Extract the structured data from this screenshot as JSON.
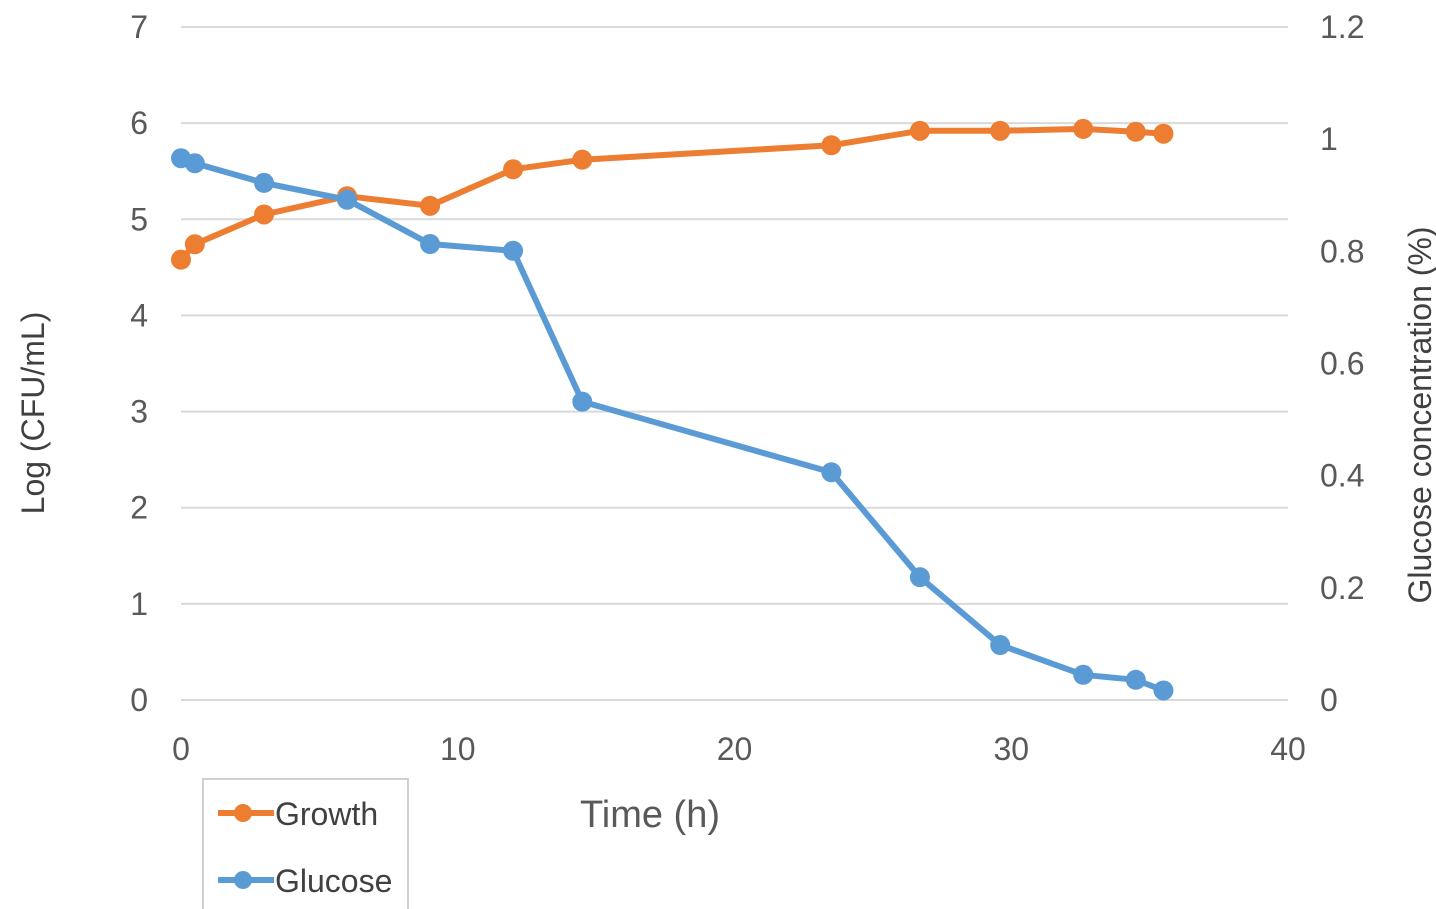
{
  "chart_data": {
    "type": "line",
    "title": "",
    "xlabel": "Time (h)",
    "ylabel_left": "Log (CFU/mL)",
    "ylabel_right": "Glucose concentration (%)",
    "xlim": [
      0,
      40
    ],
    "ylim_left": [
      0,
      7
    ],
    "ylim_right": [
      0,
      1.2
    ],
    "x_ticks": [
      "0",
      "10",
      "20",
      "30",
      "40"
    ],
    "y_ticks_left": [
      "0",
      "1",
      "2",
      "3",
      "4",
      "5",
      "6",
      "7"
    ],
    "y_ticks_right": [
      "0",
      "0.2",
      "0.4",
      "0.6",
      "0.8",
      "1",
      "1.2"
    ],
    "grid": true,
    "legend_position": "bottom-left",
    "series": [
      {
        "name": "Growth",
        "axis": "left",
        "color": "#ED7D31",
        "x": [
          0,
          0.5,
          3,
          6,
          9,
          12,
          14.5,
          23.5,
          26.7,
          29.6,
          32.6,
          34.5,
          35.5
        ],
        "y": [
          4.58,
          4.74,
          5.05,
          5.24,
          5.14,
          5.52,
          5.62,
          5.77,
          5.92,
          5.92,
          5.94,
          5.91,
          5.89
        ]
      },
      {
        "name": "Glucose",
        "axis": "right",
        "color": "#5B9BD5",
        "x": [
          0,
          0.5,
          3,
          6,
          9,
          12,
          14.5,
          23.5,
          26.7,
          29.6,
          32.6,
          34.5,
          35.5
        ],
        "y": [
          0.966,
          0.957,
          0.922,
          0.892,
          0.813,
          0.801,
          0.532,
          0.406,
          0.219,
          0.098,
          0.045,
          0.036,
          0.017
        ]
      }
    ]
  }
}
